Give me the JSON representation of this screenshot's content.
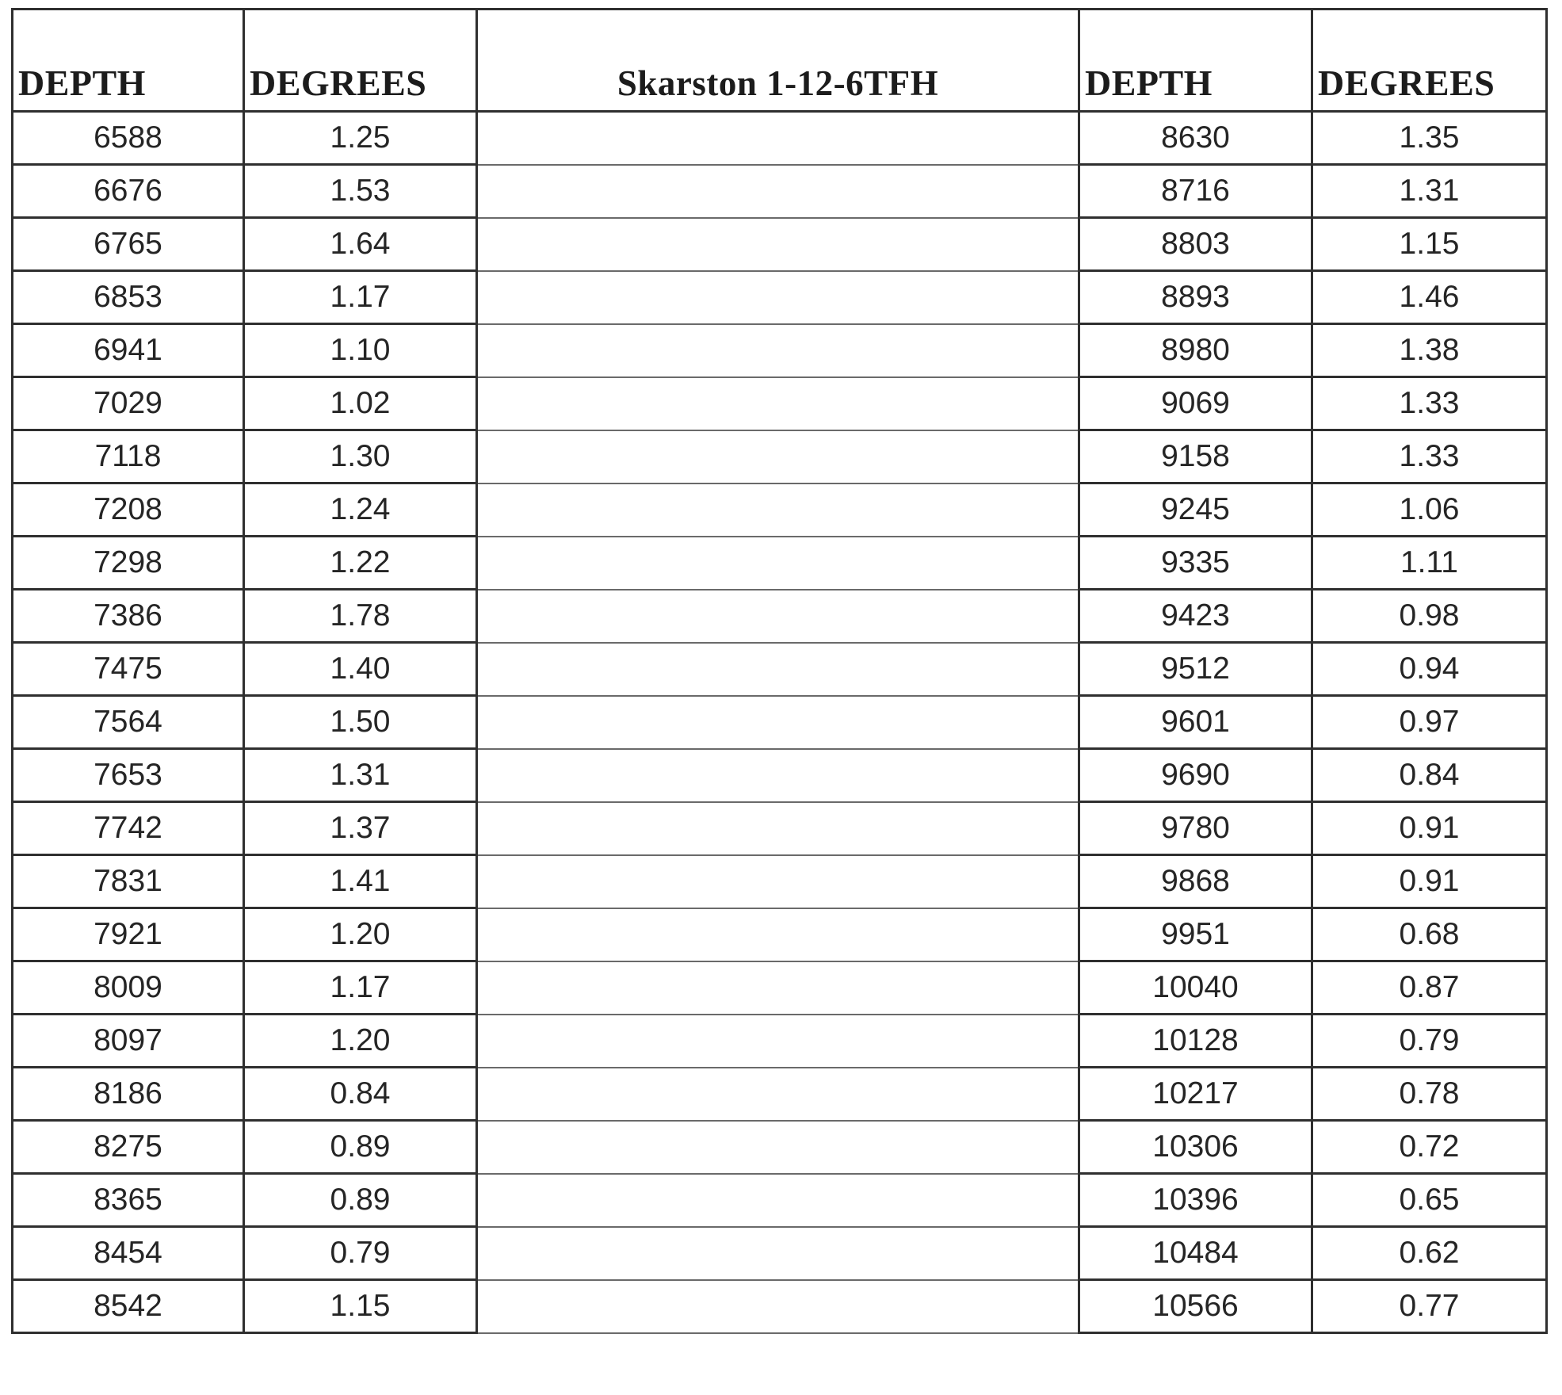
{
  "table": {
    "headers": {
      "depth_left": "DEPTH",
      "degrees_left": "DEGREES",
      "title": "Skarston 1-12-6TFH",
      "depth_right": "DEPTH",
      "degrees_right": "DEGREES"
    },
    "rows": [
      {
        "depth_left": "6588",
        "degrees_left": "1.25",
        "depth_right": "8630",
        "degrees_right": "1.35"
      },
      {
        "depth_left": "6676",
        "degrees_left": "1.53",
        "depth_right": "8716",
        "degrees_right": "1.31"
      },
      {
        "depth_left": "6765",
        "degrees_left": "1.64",
        "depth_right": "8803",
        "degrees_right": "1.15"
      },
      {
        "depth_left": "6853",
        "degrees_left": "1.17",
        "depth_right": "8893",
        "degrees_right": "1.46"
      },
      {
        "depth_left": "6941",
        "degrees_left": "1.10",
        "depth_right": "8980",
        "degrees_right": "1.38"
      },
      {
        "depth_left": "7029",
        "degrees_left": "1.02",
        "depth_right": "9069",
        "degrees_right": "1.33"
      },
      {
        "depth_left": "7118",
        "degrees_left": "1.30",
        "depth_right": "9158",
        "degrees_right": "1.33"
      },
      {
        "depth_left": "7208",
        "degrees_left": "1.24",
        "depth_right": "9245",
        "degrees_right": "1.06"
      },
      {
        "depth_left": "7298",
        "degrees_left": "1.22",
        "depth_right": "9335",
        "degrees_right": "1.11"
      },
      {
        "depth_left": "7386",
        "degrees_left": "1.78",
        "depth_right": "9423",
        "degrees_right": "0.98"
      },
      {
        "depth_left": "7475",
        "degrees_left": "1.40",
        "depth_right": "9512",
        "degrees_right": "0.94"
      },
      {
        "depth_left": "7564",
        "degrees_left": "1.50",
        "depth_right": "9601",
        "degrees_right": "0.97"
      },
      {
        "depth_left": "7653",
        "degrees_left": "1.31",
        "depth_right": "9690",
        "degrees_right": "0.84"
      },
      {
        "depth_left": "7742",
        "degrees_left": "1.37",
        "depth_right": "9780",
        "degrees_right": "0.91"
      },
      {
        "depth_left": "7831",
        "degrees_left": "1.41",
        "depth_right": "9868",
        "degrees_right": "0.91"
      },
      {
        "depth_left": "7921",
        "degrees_left": "1.20",
        "depth_right": "9951",
        "degrees_right": "0.68"
      },
      {
        "depth_left": "8009",
        "degrees_left": "1.17",
        "depth_right": "10040",
        "degrees_right": "0.87"
      },
      {
        "depth_left": "8097",
        "degrees_left": "1.20",
        "depth_right": "10128",
        "degrees_right": "0.79"
      },
      {
        "depth_left": "8186",
        "degrees_left": "0.84",
        "depth_right": "10217",
        "degrees_right": "0.78"
      },
      {
        "depth_left": "8275",
        "degrees_left": "0.89",
        "depth_right": "10306",
        "degrees_right": "0.72"
      },
      {
        "depth_left": "8365",
        "degrees_left": "0.89",
        "depth_right": "10396",
        "degrees_right": "0.65"
      },
      {
        "depth_left": "8454",
        "degrees_left": "0.79",
        "depth_right": "10484",
        "degrees_right": "0.62"
      },
      {
        "depth_left": "8542",
        "degrees_left": "1.15",
        "depth_right": "10566",
        "degrees_right": "0.77"
      }
    ]
  }
}
